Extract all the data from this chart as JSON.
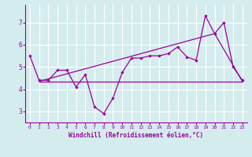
{
  "x_values": [
    0,
    1,
    2,
    3,
    4,
    5,
    6,
    7,
    8,
    9,
    10,
    11,
    12,
    13,
    14,
    15,
    16,
    17,
    18,
    19,
    20,
    21,
    22,
    23
  ],
  "line1_y": [
    5.5,
    4.4,
    4.4,
    4.85,
    4.85,
    4.1,
    4.65,
    3.2,
    2.9,
    3.6,
    4.75,
    5.4,
    5.4,
    5.5,
    5.5,
    5.6,
    5.9,
    5.45,
    5.3,
    7.3,
    6.5,
    7.0,
    5.0,
    4.4
  ],
  "line2_y_start": 4.35,
  "line2_x": [
    1,
    23
  ],
  "line2_y": [
    4.35,
    4.35
  ],
  "line3_x": [
    1,
    20,
    23
  ],
  "line3_y": [
    4.35,
    6.5,
    4.35
  ],
  "line_color": "#990099",
  "bg_color": "#d5ecee",
  "grid_color": "#b8dde0",
  "xlabel": "Windchill (Refroidissement éolien,°C)",
  "ylim": [
    2.5,
    7.8
  ],
  "xlim": [
    -0.5,
    23.5
  ],
  "yticks": [
    3,
    4,
    5,
    6,
    7
  ],
  "xticks": [
    0,
    1,
    2,
    3,
    4,
    5,
    6,
    7,
    8,
    9,
    10,
    11,
    12,
    13,
    14,
    15,
    16,
    17,
    18,
    19,
    20,
    21,
    22,
    23
  ]
}
